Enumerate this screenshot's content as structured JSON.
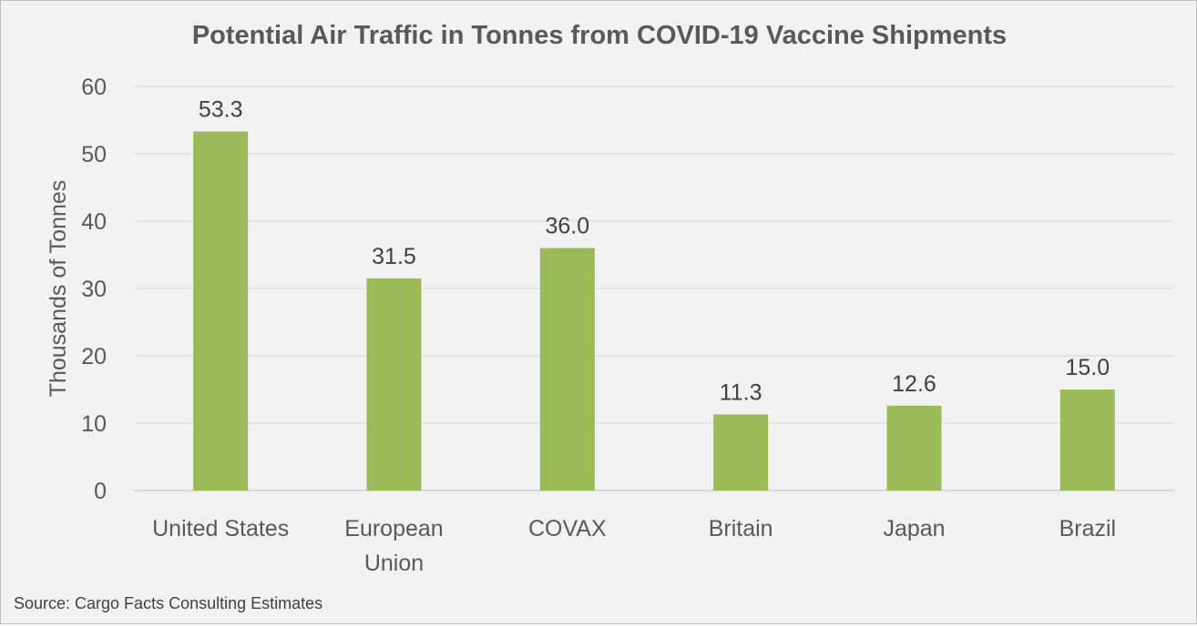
{
  "chart_data": {
    "type": "bar",
    "title": "Potential Air Traffic in Tonnes from COVID-19 Vaccine Shipments",
    "xlabel": "",
    "ylabel": "Thousands of Tonnes",
    "categories": [
      [
        "United States"
      ],
      [
        "European",
        "Union"
      ],
      [
        "COVAX"
      ],
      [
        "Britain"
      ],
      [
        "Japan"
      ],
      [
        "Brazil"
      ]
    ],
    "values": [
      53.3,
      31.5,
      36.0,
      11.3,
      12.6,
      15.0
    ],
    "value_labels": [
      "53.3",
      "31.5",
      "36.0",
      "11.3",
      "12.6",
      "15.0"
    ],
    "ylim": [
      0,
      60
    ],
    "yticks": [
      0,
      10,
      20,
      30,
      40,
      50,
      60
    ],
    "grid": true,
    "bar_color": "#9bbb59"
  },
  "footer": {
    "source": "Source: Cargo Facts Consulting Estimates"
  }
}
